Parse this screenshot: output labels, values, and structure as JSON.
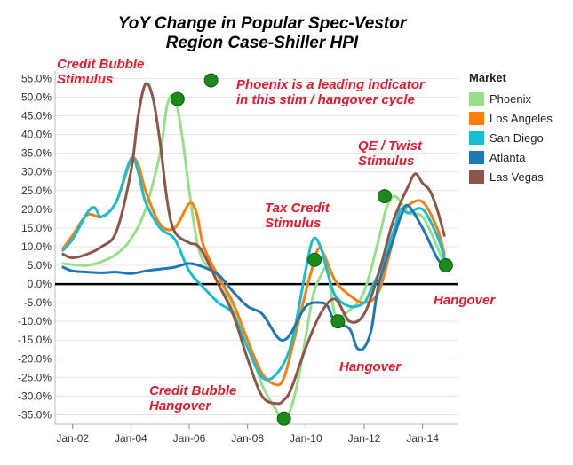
{
  "chart_data": {
    "type": "line",
    "title_line1": "YoY Change in Popular Spec-Vestor",
    "title_line2": "Region Case-Shiller HPI",
    "xlabel": "",
    "ylabel": "",
    "xlim": [
      2001.4,
      2015.2
    ],
    "ylim": [
      -37.5,
      57
    ],
    "yticks": [
      -35,
      -30,
      -25,
      -20,
      -15,
      -10,
      -5,
      0,
      5,
      10,
      15,
      20,
      25,
      30,
      35,
      40,
      45,
      50,
      55
    ],
    "ytick_labels": [
      "-35.0%",
      "-30.0%",
      "-25.0%",
      "-20.0%",
      "-15.0%",
      "-10.0%",
      "-5.0%",
      "0.0%",
      "5.0%",
      "10.0%",
      "15.0%",
      "20.0%",
      "25.0%",
      "30.0%",
      "35.0%",
      "40.0%",
      "45.0%",
      "50.0%",
      "55.0%"
    ],
    "xticks": [
      2002,
      2004,
      2006,
      2008,
      2010,
      2012,
      2014
    ],
    "xtick_labels": [
      "Jan-02",
      "Jan-04",
      "Jan-06",
      "Jan-08",
      "Jan-10",
      "Jan-12",
      "Jan-14"
    ],
    "legend_title": "Market",
    "series": [
      {
        "name": "Phoenix",
        "color": "#98df8a",
        "x": [
          2001.67,
          2002.0,
          2002.5,
          2003.0,
          2003.5,
          2004.0,
          2004.5,
          2005.0,
          2005.25,
          2005.5,
          2005.75,
          2006.0,
          2006.25,
          2006.5,
          2007.0,
          2007.5,
          2008.0,
          2008.5,
          2009.0,
          2009.25,
          2009.5,
          2009.75,
          2010.0,
          2010.25,
          2010.5,
          2010.75,
          2011.0,
          2011.5,
          2012.0,
          2012.5,
          2012.75,
          2013.0,
          2013.25,
          2013.5,
          2014.0,
          2014.5,
          2014.75
        ],
        "values": [
          5.5,
          5.2,
          5.0,
          6.0,
          8.0,
          12.0,
          20.0,
          35.0,
          48.0,
          50.0,
          40.0,
          25.0,
          12.0,
          6.0,
          2.0,
          -7.0,
          -15.0,
          -27.0,
          -34.0,
          -36.5,
          -33.0,
          -25.0,
          -14.0,
          -3.0,
          2.0,
          4.0,
          -8.0,
          -7.0,
          -2.0,
          12.0,
          20.0,
          23.5,
          22.0,
          19.0,
          18.0,
          10.0,
          5.0
        ]
      },
      {
        "name": "Los Angeles",
        "color": "#ff7f0e",
        "x": [
          2001.67,
          2002.0,
          2002.5,
          2003.0,
          2003.5,
          2004.0,
          2004.25,
          2004.5,
          2005.0,
          2005.5,
          2006.0,
          2006.25,
          2006.5,
          2007.0,
          2007.5,
          2008.0,
          2008.5,
          2009.0,
          2009.25,
          2009.5,
          2010.0,
          2010.25,
          2010.5,
          2011.0,
          2011.5,
          2012.0,
          2012.5,
          2013.0,
          2013.25,
          2013.5,
          2014.0,
          2014.5,
          2014.75
        ],
        "values": [
          9.5,
          13.0,
          18.5,
          18.0,
          22.0,
          33.0,
          32.0,
          25.0,
          16.0,
          15.0,
          21.5,
          19.0,
          10.0,
          2.0,
          -5.0,
          -15.0,
          -24.0,
          -27.0,
          -25.0,
          -18.0,
          -2.0,
          5.0,
          9.5,
          1.0,
          -3.0,
          -5.0,
          -2.0,
          12.0,
          18.0,
          21.0,
          22.0,
          15.0,
          8.0
        ]
      },
      {
        "name": "San Diego",
        "color": "#17becf",
        "x": [
          2001.67,
          2002.0,
          2002.5,
          2002.75,
          2003.0,
          2003.5,
          2004.0,
          2004.25,
          2004.5,
          2005.0,
          2005.5,
          2006.0,
          2006.5,
          2007.0,
          2007.5,
          2008.0,
          2008.5,
          2009.0,
          2009.5,
          2010.0,
          2010.25,
          2010.5,
          2010.75,
          2011.0,
          2011.5,
          2012.0,
          2012.25,
          2012.5,
          2013.0,
          2013.25,
          2013.5,
          2014.0,
          2014.5,
          2014.75
        ],
        "values": [
          9.0,
          12.0,
          19.0,
          20.5,
          18.0,
          22.0,
          33.5,
          30.0,
          22.0,
          15.0,
          12.0,
          3.5,
          -1.0,
          -5.0,
          -8.0,
          -17.0,
          -25.0,
          -24.0,
          -16.0,
          4.0,
          12.0,
          10.0,
          3.0,
          -3.0,
          -6.0,
          -5.0,
          -1.0,
          3.0,
          14.0,
          20.0,
          19.0,
          20.0,
          13.0,
          7.0
        ]
      },
      {
        "name": "Atlanta",
        "color": "#1f77b4",
        "x": [
          2001.67,
          2002.0,
          2002.5,
          2003.0,
          2003.5,
          2004.0,
          2004.5,
          2005.0,
          2005.5,
          2006.0,
          2006.5,
          2007.0,
          2007.5,
          2008.0,
          2008.5,
          2009.0,
          2009.25,
          2009.5,
          2010.0,
          2010.5,
          2010.75,
          2011.0,
          2011.5,
          2011.75,
          2012.0,
          2012.25,
          2012.5,
          2013.0,
          2013.25,
          2013.5,
          2014.0,
          2014.5,
          2014.75
        ],
        "values": [
          4.5,
          3.5,
          3.2,
          3.0,
          3.2,
          2.8,
          3.5,
          4.0,
          4.5,
          5.5,
          4.5,
          2.5,
          -2.0,
          -6.0,
          -8.0,
          -14.0,
          -15.0,
          -13.0,
          -6.0,
          -5.0,
          -6.0,
          -10.0,
          -12.0,
          -17.0,
          -17.0,
          -12.0,
          0.0,
          12.0,
          18.0,
          21.0,
          15.0,
          7.0,
          5.0
        ]
      },
      {
        "name": "Las Vegas",
        "color": "#8c564b",
        "x": [
          2001.67,
          2002.0,
          2002.5,
          2003.0,
          2003.5,
          2004.0,
          2004.25,
          2004.5,
          2004.75,
          2005.0,
          2005.25,
          2005.5,
          2006.0,
          2006.25,
          2006.5,
          2007.0,
          2007.5,
          2008.0,
          2008.5,
          2009.0,
          2009.25,
          2009.5,
          2010.0,
          2010.5,
          2011.0,
          2011.5,
          2012.0,
          2012.5,
          2013.0,
          2013.5,
          2013.75,
          2014.0,
          2014.25,
          2014.5,
          2014.75
        ],
        "values": [
          8.0,
          7.0,
          8.0,
          10.0,
          14.0,
          30.0,
          45.0,
          53.5,
          50.0,
          38.0,
          22.0,
          14.0,
          11.0,
          10.5,
          8.0,
          0.0,
          -8.0,
          -20.0,
          -30.0,
          -32.0,
          -31.0,
          -28.0,
          -17.0,
          -8.0,
          -4.0,
          -10.0,
          -8.0,
          3.0,
          17.0,
          26.0,
          29.5,
          27.0,
          25.0,
          20.0,
          13.0
        ]
      }
    ],
    "markers": [
      {
        "x": 2005.6,
        "y": 49.5
      },
      {
        "x": 2009.25,
        "y": -36.0
      },
      {
        "x": 2010.3,
        "y": 6.5
      },
      {
        "x": 2011.1,
        "y": -10.0
      },
      {
        "x": 2012.7,
        "y": 23.5
      },
      {
        "x": 2014.8,
        "y": 5.0
      }
    ],
    "marker_color": "#1a8a1a",
    "legend_marker": {
      "x": 2006.75,
      "y": 54.5
    }
  },
  "annotations": {
    "credit_bubble_stimulus": [
      "Credit Bubble",
      "Stimulus"
    ],
    "phoenix_indicator": [
      "Phoenix is a leading indicator",
      "in this stim / hangover cycle"
    ],
    "qe_twist": [
      "QE / Twist",
      "Stimulus"
    ],
    "tax_credit": [
      "Tax Credit",
      "Stimulus"
    ],
    "hangover_right": "Hangover",
    "hangover_mid": "Hangover",
    "credit_bubble_hangover": [
      "Credit Bubble",
      "Hangover"
    ]
  },
  "colors": {
    "annotation": "#e8192c",
    "zero_line": "#000000",
    "grid": "#e4e4e4"
  }
}
